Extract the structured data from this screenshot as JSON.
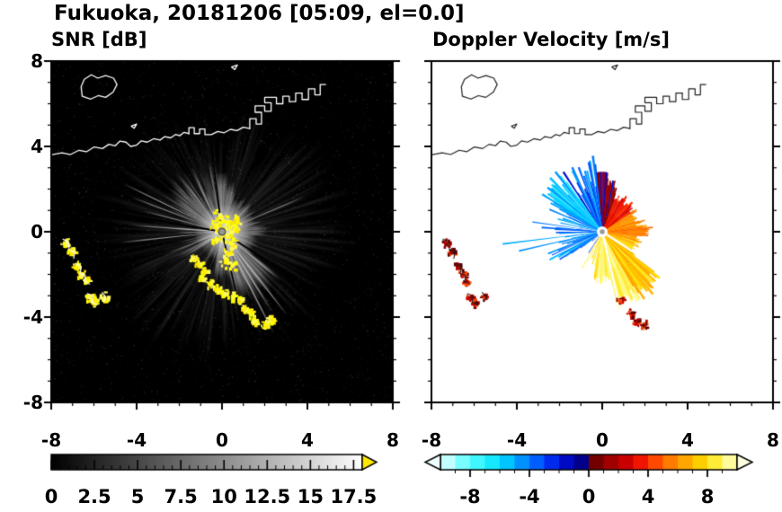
{
  "header": {
    "title": "Fukuoka, 20181206 [05:09, el=0.0]"
  },
  "chart_data": [
    {
      "type": "heatmap",
      "panel": "left",
      "title": "SNR [dB]",
      "xlim": [
        -8,
        8
      ],
      "ylim": [
        -8,
        8
      ],
      "xticks": {
        "values": [
          -8,
          -4,
          0,
          4,
          8
        ],
        "labels": [
          "-8",
          "-4",
          "0",
          "4",
          "8"
        ]
      },
      "yticks": {
        "values": [
          8,
          4,
          0,
          -4,
          -8
        ],
        "labels": [
          "8",
          "4",
          "0",
          "-4",
          "-8"
        ]
      },
      "minor_tick_step": 1,
      "background": "#000000",
      "radar_center": [
        0,
        0
      ],
      "colorbar": {
        "range": [
          0,
          18
        ],
        "tick_values": [
          0,
          2.5,
          5,
          7.5,
          10,
          12.5,
          15,
          17.5
        ],
        "tick_labels": [
          "0",
          "2.5",
          "5",
          "7.5",
          "10",
          "12.5",
          "15",
          "17.5"
        ],
        "minor_step": 0.5,
        "stops": [
          [
            0,
            "#000000"
          ],
          [
            18,
            "#ffffff"
          ]
        ],
        "over_arrow_color": "#ffe800"
      },
      "clutter_colors": [
        "#ffff00",
        "#ffe800",
        "#fff95e"
      ],
      "clutter": {
        "center": [
          [
            0,
            0.1
          ],
          [
            0.3,
            -0.2
          ],
          [
            0.5,
            -0.6
          ],
          [
            0.35,
            -1.0
          ],
          [
            0.15,
            -1.35
          ],
          [
            -0.2,
            -0.4
          ],
          [
            -0.35,
            0.25
          ],
          [
            0.2,
            0.45
          ],
          [
            0.6,
            0.1
          ],
          [
            0.45,
            -1.6
          ],
          [
            0.7,
            0.5
          ],
          [
            -0.1,
            0.75
          ]
        ],
        "chain_sw": [
          [
            -7.3,
            -0.55
          ],
          [
            -7.05,
            -0.95
          ],
          [
            -6.8,
            -1.6
          ],
          [
            -6.55,
            -2.0
          ],
          [
            -6.35,
            -2.3
          ],
          [
            -6.15,
            -3.1
          ],
          [
            -5.9,
            -3.35
          ],
          [
            -5.5,
            -3.05
          ]
        ],
        "chain_south": [
          [
            -1.35,
            -1.25
          ],
          [
            -1.05,
            -1.55
          ],
          [
            -0.8,
            -1.85
          ],
          [
            -0.95,
            -2.2
          ],
          [
            -0.55,
            -2.45
          ],
          [
            -0.2,
            -2.7
          ],
          [
            0.15,
            -2.9
          ],
          [
            0.5,
            -3.05
          ],
          [
            0.85,
            -3.25
          ],
          [
            1.05,
            -3.6
          ],
          [
            1.35,
            -3.85
          ],
          [
            1.6,
            -4.2
          ],
          [
            2.0,
            -4.35
          ],
          [
            2.3,
            -4.15
          ]
        ]
      }
    },
    {
      "type": "heatmap",
      "panel": "right",
      "title": "Doppler Velocity [m/s]",
      "xlim": [
        -8,
        8
      ],
      "ylim": [
        -8,
        8
      ],
      "xticks": {
        "values": [
          -8,
          -4,
          0,
          4,
          8
        ],
        "labels": [
          "-8",
          "-4",
          "0",
          "4",
          "8"
        ]
      },
      "minor_tick_step": 1,
      "background": "#ffffff",
      "radar_center": [
        0,
        0
      ],
      "colorbar": {
        "range": [
          -10,
          10
        ],
        "tick_values": [
          -8,
          -4,
          0,
          4,
          8
        ],
        "tick_labels": [
          "-8",
          "-4",
          "0",
          "4",
          "8"
        ],
        "minor_step": 1,
        "under_arrow_color": "#f0ffff",
        "over_arrow_color": "#ffffe0",
        "colormap": [
          [
            -10,
            "#e6ffff"
          ],
          [
            -8,
            "#55ffff"
          ],
          [
            -6,
            "#00e0ff"
          ],
          [
            -5,
            "#00aaff"
          ],
          [
            -4,
            "#0077ff"
          ],
          [
            -3,
            "#0044ff"
          ],
          [
            -2,
            "#0011dd"
          ],
          [
            -1,
            "#0000a8"
          ],
          [
            -0.05,
            "#000070"
          ],
          [
            0.05,
            "#5e0000"
          ],
          [
            1,
            "#8b0000"
          ],
          [
            2,
            "#b40000"
          ],
          [
            3,
            "#e00000"
          ],
          [
            4,
            "#ff2a00"
          ],
          [
            5,
            "#ff6600"
          ],
          [
            6,
            "#ff9100"
          ],
          [
            7,
            "#ffbb00"
          ],
          [
            8,
            "#ffe100"
          ],
          [
            9,
            "#fff76e"
          ],
          [
            10,
            "#ffffc8"
          ]
        ]
      },
      "speck_colors": [
        "#cc0000",
        "#8b0000",
        "#ff4400",
        "#550000"
      ],
      "echo_specks": [
        [
          -7.3,
          -0.55
        ],
        [
          -7.05,
          -0.95
        ],
        [
          -6.8,
          -1.6
        ],
        [
          -6.55,
          -2.0
        ],
        [
          -6.35,
          -2.3
        ],
        [
          -6.15,
          -3.1
        ],
        [
          -5.9,
          -3.35
        ],
        [
          -5.5,
          -3.05
        ],
        [
          0.85,
          -3.25
        ],
        [
          1.35,
          -3.85
        ],
        [
          1.6,
          -4.2
        ],
        [
          2.0,
          -4.35
        ]
      ]
    }
  ],
  "map": {
    "coastline": [
      [
        [
          -8.3,
          3.55
        ],
        [
          -7.5,
          3.7
        ],
        [
          -7.1,
          3.62
        ],
        [
          -6.7,
          3.82
        ],
        [
          -6.35,
          3.75
        ],
        [
          -6.0,
          3.97
        ],
        [
          -5.6,
          3.9
        ],
        [
          -5.3,
          4.1
        ],
        [
          -5.0,
          4.03
        ],
        [
          -4.78,
          4.25
        ],
        [
          -4.5,
          4.2
        ],
        [
          -4.28,
          4.0
        ],
        [
          -4.0,
          4.06
        ],
        [
          -3.78,
          4.26
        ],
        [
          -3.5,
          4.2
        ],
        [
          -3.2,
          4.36
        ],
        [
          -2.9,
          4.3
        ],
        [
          -2.68,
          4.46
        ],
        [
          -2.4,
          4.4
        ],
        [
          -2.18,
          4.56
        ],
        [
          -1.98,
          4.5
        ],
        [
          -1.78,
          4.66
        ],
        [
          -1.55,
          4.6
        ]
      ],
      [
        [
          -1.55,
          4.6
        ],
        [
          -1.55,
          4.88
        ],
        [
          -1.3,
          4.88
        ],
        [
          -1.3,
          4.6
        ],
        [
          -1.05,
          4.6
        ],
        [
          -1.05,
          4.82
        ],
        [
          -0.8,
          4.82
        ],
        [
          -0.8,
          4.55
        ],
        [
          -0.5,
          4.55
        ],
        [
          -0.2,
          4.7
        ],
        [
          0.1,
          4.64
        ],
        [
          0.4,
          4.8
        ],
        [
          0.7,
          4.74
        ],
        [
          1.0,
          4.9
        ],
        [
          1.3,
          4.84
        ]
      ],
      [
        [
          1.3,
          4.84
        ],
        [
          1.3,
          5.3
        ],
        [
          1.6,
          5.3
        ],
        [
          1.6,
          5.05
        ],
        [
          1.85,
          5.05
        ],
        [
          1.85,
          5.6
        ],
        [
          1.55,
          5.6
        ],
        [
          1.55,
          5.9
        ],
        [
          2.0,
          5.9
        ],
        [
          2.0,
          5.65
        ],
        [
          2.3,
          5.65
        ],
        [
          2.3,
          6.05
        ],
        [
          2.0,
          6.05
        ],
        [
          2.0,
          6.3
        ],
        [
          2.55,
          6.3
        ],
        [
          2.55,
          6.0
        ],
        [
          2.85,
          6.0
        ],
        [
          2.85,
          6.35
        ],
        [
          3.15,
          6.35
        ],
        [
          3.15,
          6.1
        ],
        [
          3.45,
          6.1
        ],
        [
          3.45,
          6.5
        ],
        [
          3.75,
          6.5
        ]
      ],
      [
        [
          3.75,
          6.5
        ],
        [
          3.75,
          6.2
        ],
        [
          4.05,
          6.2
        ],
        [
          4.05,
          6.7
        ],
        [
          4.35,
          6.7
        ],
        [
          4.35,
          6.42
        ],
        [
          4.6,
          6.42
        ],
        [
          4.6,
          6.9
        ],
        [
          4.85,
          6.9
        ]
      ],
      [
        [
          -6.55,
          6.35
        ],
        [
          -6.15,
          6.22
        ],
        [
          -5.8,
          6.38
        ],
        [
          -5.45,
          6.3
        ],
        [
          -5.1,
          6.55
        ],
        [
          -4.92,
          6.9
        ],
        [
          -5.08,
          7.2
        ],
        [
          -5.45,
          7.32
        ],
        [
          -5.82,
          7.2
        ],
        [
          -6.12,
          7.36
        ],
        [
          -6.45,
          7.15
        ],
        [
          -6.6,
          6.8
        ],
        [
          -6.55,
          6.35
        ]
      ],
      [
        [
          0.45,
          7.72
        ],
        [
          0.72,
          7.82
        ],
        [
          0.6,
          7.6
        ],
        [
          0.45,
          7.72
        ]
      ],
      [
        [
          -4.25,
          4.95
        ],
        [
          -4.0,
          5.05
        ],
        [
          -4.12,
          4.85
        ],
        [
          -4.25,
          4.95
        ]
      ]
    ],
    "islands_sw": [
      [
        [
          -7.45,
          -0.35
        ],
        [
          -7.2,
          -0.5
        ],
        [
          -7.15,
          -0.85
        ],
        [
          -6.9,
          -0.98
        ],
        [
          -6.95,
          -1.25
        ]
      ],
      [
        [
          -6.85,
          -1.5
        ],
        [
          -6.6,
          -1.62
        ],
        [
          -6.65,
          -1.95
        ],
        [
          -6.4,
          -2.05
        ],
        [
          -6.45,
          -2.35
        ],
        [
          -6.2,
          -2.45
        ]
      ],
      [
        [
          -6.3,
          -2.9
        ],
        [
          -6.05,
          -3.02
        ],
        [
          -6.1,
          -3.3
        ],
        [
          -5.85,
          -3.42
        ]
      ],
      [
        [
          -5.62,
          -2.85
        ],
        [
          -5.45,
          -3.05
        ],
        [
          -5.55,
          -3.28
        ]
      ]
    ]
  },
  "radar": {
    "long_rays": [
      [
        154,
        5.2
      ],
      [
        159,
        4.6
      ],
      [
        165,
        3.8
      ],
      [
        176,
        4.3
      ],
      [
        186,
        4.8
      ],
      [
        23,
        4.2
      ],
      [
        -52,
        5.0
      ],
      [
        -58,
        4.4
      ],
      [
        -63,
        5.4
      ],
      [
        -40,
        3.6
      ]
    ],
    "shadow_rays_deg": [
      97,
      170,
      -33,
      -77
    ],
    "doppler_rays": [
      [
        172,
        3.3,
        -4
      ],
      [
        187,
        4.7,
        -5
      ],
      [
        193,
        4.0,
        -4.5
      ],
      [
        205,
        2.6,
        -3
      ]
    ],
    "wind": {
      "toward_deg": -20,
      "max_speed_ms": 9
    }
  }
}
